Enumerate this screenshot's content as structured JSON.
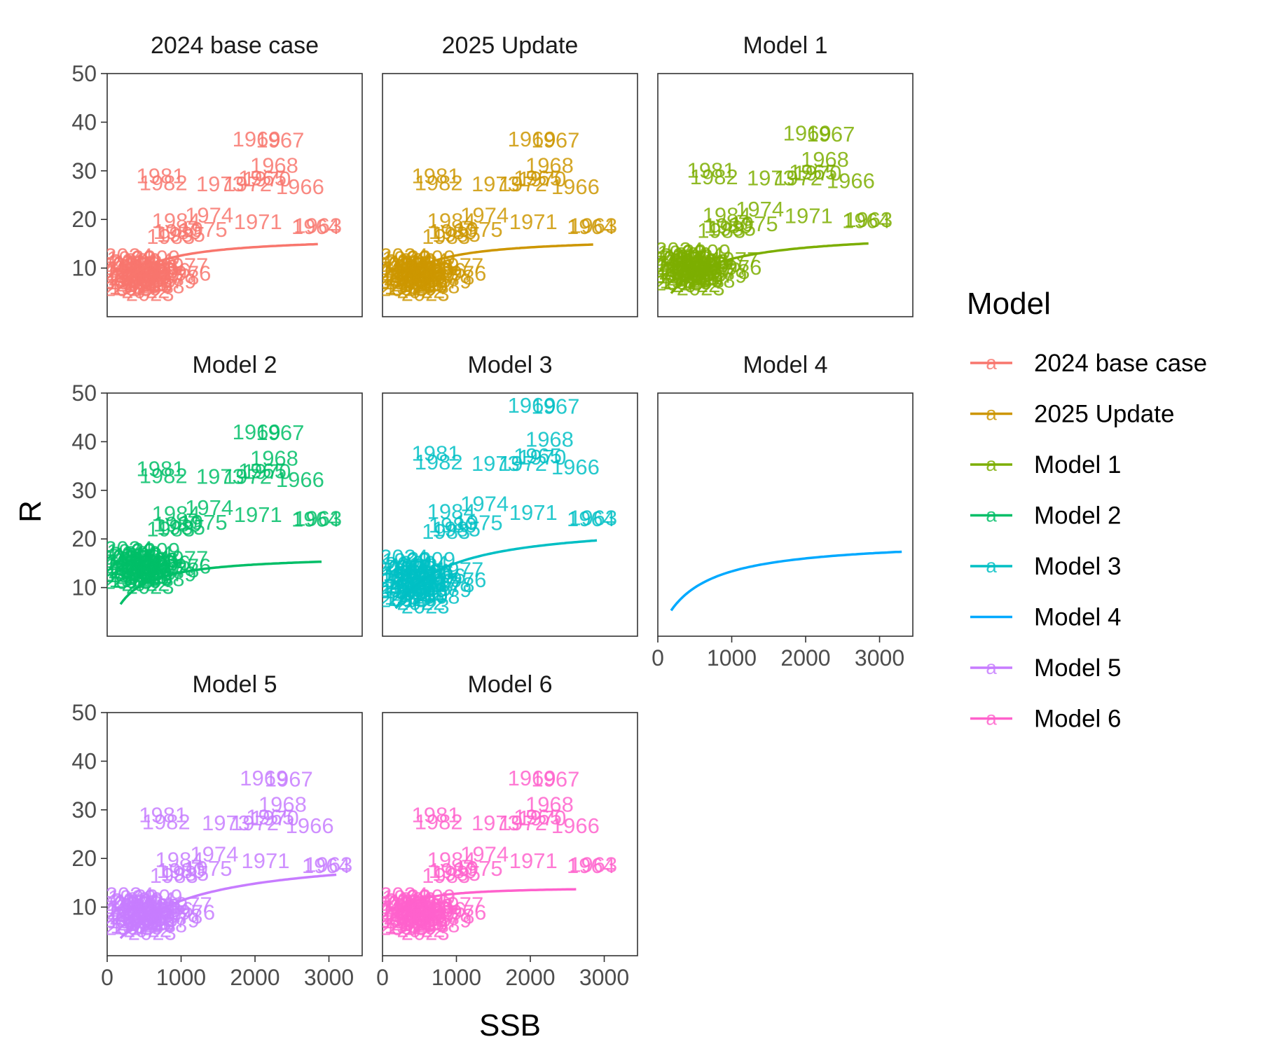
{
  "chart_data": {
    "type": "scatter",
    "facet_layout": "3x3",
    "xlabel": "SSB",
    "ylabel": "R",
    "xlim": [
      0,
      3450
    ],
    "ylim": [
      0,
      50
    ],
    "x_ticks": [
      0,
      1000,
      2000,
      3000
    ],
    "y_ticks": [
      10,
      20,
      30,
      40,
      50
    ],
    "grid": false,
    "legend": {
      "title": "Model",
      "position": "right",
      "entries": [
        "2024 base case",
        "2025 Update",
        "Model 1",
        "Model 2",
        "Model 3",
        "Model 4",
        "Model 5",
        "Model 6"
      ]
    },
    "points_base": [
      {
        "label": "1963",
        "x": 2850,
        "y": 18.8
      },
      {
        "label": "1964",
        "x": 2820,
        "y": 18.6
      },
      {
        "label": "1965",
        "x": 2100,
        "y": 28.6
      },
      {
        "label": "1966",
        "x": 2610,
        "y": 26.8
      },
      {
        "label": "1967",
        "x": 2340,
        "y": 36.4
      },
      {
        "label": "1968",
        "x": 2260,
        "y": 31.2
      },
      {
        "label": "1969",
        "x": 2020,
        "y": 36.6
      },
      {
        "label": "1970",
        "x": 2160,
        "y": 28.4
      },
      {
        "label": "1971",
        "x": 2040,
        "y": 19.6
      },
      {
        "label": "1972",
        "x": 1900,
        "y": 27.4
      },
      {
        "label": "1973",
        "x": 1530,
        "y": 27.4
      },
      {
        "label": "1974",
        "x": 1380,
        "y": 21.0
      },
      {
        "label": "1975",
        "x": 1300,
        "y": 18.0
      },
      {
        "label": "1976",
        "x": 1080,
        "y": 9.0
      },
      {
        "label": "1977",
        "x": 1040,
        "y": 10.6
      },
      {
        "label": "1978",
        "x": 920,
        "y": 8.2
      },
      {
        "label": "1979",
        "x": 880,
        "y": 7.4
      },
      {
        "label": "1980",
        "x": 950,
        "y": 17.6
      },
      {
        "label": "1981",
        "x": 720,
        "y": 29.0
      },
      {
        "label": "1982",
        "x": 760,
        "y": 27.6
      },
      {
        "label": "1983",
        "x": 860,
        "y": 16.6
      },
      {
        "label": "1984",
        "x": 930,
        "y": 19.8
      },
      {
        "label": "1985",
        "x": 1000,
        "y": 17.0
      },
      {
        "label": "1986",
        "x": 800,
        "y": 9.6
      },
      {
        "label": "1987",
        "x": 700,
        "y": 8.4
      },
      {
        "label": "1988",
        "x": 620,
        "y": 10.2
      },
      {
        "label": "1989",
        "x": 560,
        "y": 6.6
      },
      {
        "label": "1990",
        "x": 500,
        "y": 9.2
      },
      {
        "label": "1991",
        "x": 450,
        "y": 7.8
      },
      {
        "label": "1992",
        "x": 420,
        "y": 11.2
      },
      {
        "label": "1993",
        "x": 380,
        "y": 8.6
      },
      {
        "label": "1994",
        "x": 350,
        "y": 6.2
      },
      {
        "label": "1995",
        "x": 330,
        "y": 10.0
      },
      {
        "label": "1996",
        "x": 310,
        "y": 7.2
      },
      {
        "label": "1997",
        "x": 300,
        "y": 9.6
      },
      {
        "label": "1998",
        "x": 320,
        "y": 12.0
      },
      {
        "label": "1999",
        "x": 360,
        "y": 8.0
      },
      {
        "label": "2000",
        "x": 400,
        "y": 10.8
      },
      {
        "label": "2001",
        "x": 440,
        "y": 6.8
      },
      {
        "label": "2002",
        "x": 480,
        "y": 9.4
      },
      {
        "label": "2003",
        "x": 520,
        "y": 8.2
      },
      {
        "label": "2004",
        "x": 560,
        "y": 11.6
      },
      {
        "label": "2005",
        "x": 600,
        "y": 7.6
      },
      {
        "label": "2006",
        "x": 640,
        "y": 10.2
      },
      {
        "label": "2007",
        "x": 680,
        "y": 8.8
      },
      {
        "label": "2008",
        "x": 720,
        "y": 6.4
      },
      {
        "label": "2009",
        "x": 660,
        "y": 12.2
      },
      {
        "label": "2010",
        "x": 600,
        "y": 9.8
      },
      {
        "label": "2011",
        "x": 540,
        "y": 7.0
      },
      {
        "label": "2012",
        "x": 480,
        "y": 10.4
      },
      {
        "label": "2013",
        "x": 420,
        "y": 8.6
      },
      {
        "label": "2014",
        "x": 360,
        "y": 11.4
      },
      {
        "label": "2015",
        "x": 300,
        "y": 9.0
      },
      {
        "label": "2016",
        "x": 260,
        "y": 7.4
      },
      {
        "label": "2017",
        "x": 240,
        "y": 10.8
      },
      {
        "label": "2018",
        "x": 280,
        "y": 5.8
      },
      {
        "label": "2019",
        "x": 340,
        "y": 8.0
      },
      {
        "label": "2020",
        "x": 400,
        "y": 6.0
      },
      {
        "label": "2021",
        "x": 460,
        "y": 9.8
      },
      {
        "label": "2022",
        "x": 520,
        "y": 5.4
      },
      {
        "label": "2023",
        "x": 580,
        "y": 4.8
      },
      {
        "label": "2024",
        "x": 290,
        "y": 12.6
      },
      {
        "label": "2025",
        "x": 350,
        "y": 11.0
      }
    ],
    "panels": [
      {
        "title": "2024 base case",
        "color": "#F8766D",
        "r_scale": 1.0,
        "r_shift": 0.0,
        "x_scale": 1.0,
        "curve": {
          "a": 16.6,
          "b": 320,
          "xmax": 2850
        },
        "x_axis": false
      },
      {
        "title": "2025 Update",
        "color": "#CD9600",
        "r_scale": 1.0,
        "r_shift": 0.0,
        "x_scale": 1.0,
        "curve": {
          "a": 16.4,
          "b": 300,
          "xmax": 2850
        },
        "x_axis": false
      },
      {
        "title": "Model 1",
        "color": "#7CAE00",
        "r_scale": 1.0,
        "r_shift": 1.2,
        "x_scale": 1.0,
        "curve": {
          "a": 17.6,
          "b": 480,
          "xmax": 2850
        },
        "x_axis": false
      },
      {
        "title": "Model 2",
        "color": "#00BE67",
        "r_scale": 1.0,
        "r_shift": 5.5,
        "x_scale": 1.0,
        "curve": {
          "a": 16.8,
          "b": 280,
          "xmax": 2900
        },
        "x_axis": false
      },
      {
        "title": "Model 3",
        "color": "#00BFC4",
        "r_scale": 1.3,
        "r_shift": 0.0,
        "x_scale": 1.0,
        "curve": {
          "a": 23.5,
          "b": 560,
          "xmax": 2900
        },
        "x_axis": false
      },
      {
        "title": "Model 4",
        "color": "#00A9FF",
        "r_scale": 0.0,
        "r_shift": 0.0,
        "x_scale": 1.0,
        "curve": {
          "a": 20.0,
          "b": 500,
          "xmax": 3300
        },
        "x_axis": true,
        "no_points": true
      },
      {
        "title": "Model 5",
        "color": "#C77CFF",
        "r_scale": 1.0,
        "r_shift": 0.0,
        "x_scale": 1.05,
        "curve": {
          "a": 21.5,
          "b": 900,
          "xmax": 3100
        },
        "x_axis": true
      },
      {
        "title": "Model 6",
        "color": "#FF61CC",
        "r_scale": 1.0,
        "r_shift": 0.0,
        "x_scale": 1.0,
        "curve": {
          "a": 14.3,
          "b": 120,
          "xmax": 2620
        },
        "x_axis": true
      }
    ]
  }
}
